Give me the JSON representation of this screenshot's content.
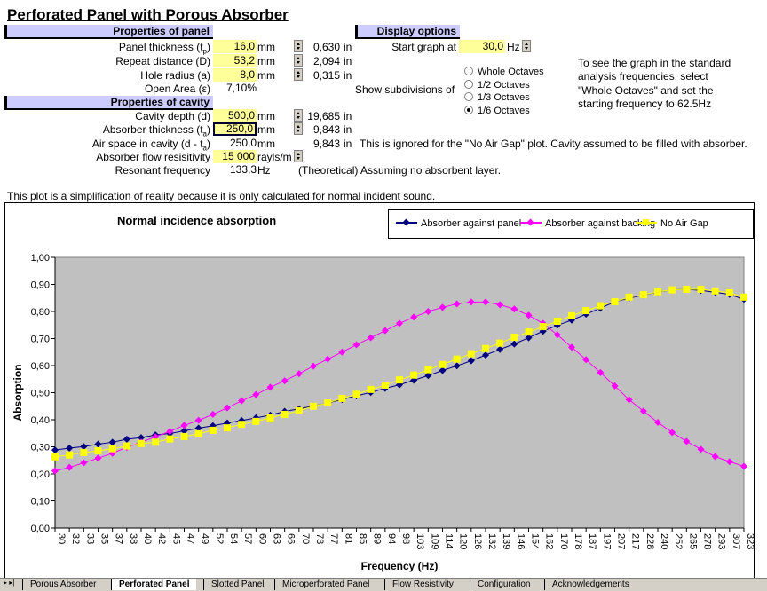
{
  "title": "Perforated Panel with Porous Absorber",
  "panel": {
    "header": "Properties of panel",
    "rows": [
      {
        "label": "Panel thickness (t",
        "sub": "p",
        "end": ")",
        "value": "16,0",
        "unit": "mm",
        "inch": "0,630",
        "inunit": "in"
      },
      {
        "label": "Repeat distance (D)",
        "value": "53,2",
        "unit": "mm",
        "inch": "2,094",
        "inunit": "in"
      },
      {
        "label": "Hole radius (a)",
        "value": "8,0",
        "unit": "mm",
        "inch": "0,315",
        "inunit": "in"
      },
      {
        "label": "Open Area (ε)",
        "value": "7,10%"
      }
    ]
  },
  "cavity": {
    "header": "Properties of cavity",
    "rows": [
      {
        "label": "Cavity depth (d)",
        "value": "500,0",
        "unit": "mm",
        "inch": "19,685",
        "inunit": "in"
      },
      {
        "label": "Absorber thickness (t",
        "sub": "a",
        "end": ")",
        "value": "250,0",
        "unit": "mm",
        "inch": "9,843",
        "inunit": "in"
      },
      {
        "label": "Air space in cavity (d - t",
        "sub": "a",
        "end": ")",
        "value": "250,0",
        "unit": "mm",
        "inch": "9,843",
        "inunit": "in",
        "note": "This is ignored for the \"No Air Gap\" plot.  Cavity assumed to be filled with absorber."
      },
      {
        "label": "Absorber flow resisitivity",
        "value": "15 000",
        "unit": "rayls/m"
      },
      {
        "label": "Resonant frequency",
        "value": "133,3",
        "unit": "Hz",
        "note": "(Theoretical) Assuming no absorbent layer."
      }
    ]
  },
  "display": {
    "header": "Display options",
    "start_label": "Start graph at",
    "start_value": "30,0",
    "start_unit": "Hz",
    "subdiv_label": "Show subdivisions of",
    "options": [
      {
        "label": "Whole Octaves",
        "checked": false
      },
      {
        "label": "1/2 Octaves",
        "checked": false
      },
      {
        "label": "1/3 Octaves",
        "checked": false
      },
      {
        "label": "1/6 Octaves",
        "checked": true
      }
    ],
    "help": [
      "To see the graph in the standard",
      "analysis frequencies, select",
      "\"Whole Octaves\" and set the",
      "starting frequency to 62.5Hz"
    ]
  },
  "plot_note": "This plot is a simplification of reality because it is only calculated for normal incident sound.",
  "chart_data": {
    "type": "line",
    "title": "Normal incidence absorption",
    "xlabel": "Frequency (Hz)",
    "ylabel": "Absorption",
    "ylim": [
      0,
      1
    ],
    "yticks": [
      "0,00",
      "0,10",
      "0,20",
      "0,30",
      "0,40",
      "0,50",
      "0,60",
      "0,70",
      "0,80",
      "0,90",
      "1,00"
    ],
    "categories": [
      "30",
      "32",
      "33",
      "35",
      "37",
      "38",
      "40",
      "42",
      "45",
      "47",
      "49",
      "52",
      "54",
      "57",
      "60",
      "63",
      "66",
      "70",
      "73",
      "77",
      "81",
      "85",
      "89",
      "94",
      "98",
      "103",
      "109",
      "114",
      "120",
      "126",
      "132",
      "139",
      "146",
      "154",
      "162",
      "170",
      "178",
      "187",
      "197",
      "207",
      "217",
      "228",
      "240",
      "252",
      "265",
      "278",
      "293",
      "307",
      "323"
    ],
    "legend_position": "top-right",
    "series": [
      {
        "name": "Absorber against panel",
        "color": "#000080",
        "marker": "diamond",
        "values": [
          0.288,
          0.295,
          0.301,
          0.31,
          0.317,
          0.328,
          0.334,
          0.344,
          0.349,
          0.359,
          0.369,
          0.378,
          0.388,
          0.397,
          0.407,
          0.417,
          0.431,
          0.44,
          0.451,
          0.462,
          0.475,
          0.488,
          0.501,
          0.516,
          0.529,
          0.546,
          0.563,
          0.582,
          0.599,
          0.618,
          0.639,
          0.66,
          0.68,
          0.703,
          0.727,
          0.749,
          0.768,
          0.79,
          0.812,
          0.836,
          0.849,
          0.861,
          0.872,
          0.88,
          0.882,
          0.878,
          0.871,
          0.863,
          0.845
        ]
      },
      {
        "name": "Absorber against backing",
        "color": "#ff00ff",
        "marker": "diamond",
        "values": [
          0.211,
          0.224,
          0.241,
          0.258,
          0.276,
          0.298,
          0.317,
          0.337,
          0.357,
          0.379,
          0.398,
          0.42,
          0.444,
          0.47,
          0.493,
          0.52,
          0.544,
          0.57,
          0.598,
          0.624,
          0.65,
          0.677,
          0.703,
          0.729,
          0.756,
          0.779,
          0.8,
          0.815,
          0.828,
          0.835,
          0.835,
          0.825,
          0.809,
          0.786,
          0.756,
          0.714,
          0.668,
          0.622,
          0.574,
          0.525,
          0.474,
          0.432,
          0.39,
          0.353,
          0.32,
          0.291,
          0.264,
          0.245,
          0.228
        ]
      },
      {
        "name": "No Air Gap",
        "color": "#ffff00",
        "marker": "square",
        "values": [
          0.263,
          0.27,
          0.279,
          0.285,
          0.293,
          0.303,
          0.312,
          0.317,
          0.329,
          0.338,
          0.348,
          0.361,
          0.37,
          0.383,
          0.394,
          0.407,
          0.42,
          0.433,
          0.45,
          0.462,
          0.479,
          0.494,
          0.512,
          0.528,
          0.547,
          0.565,
          0.585,
          0.604,
          0.624,
          0.644,
          0.663,
          0.683,
          0.705,
          0.724,
          0.744,
          0.764,
          0.784,
          0.803,
          0.821,
          0.836,
          0.853,
          0.862,
          0.873,
          0.88,
          0.882,
          0.882,
          0.876,
          0.869,
          0.853
        ]
      }
    ]
  },
  "tabs": [
    "Porous Absorber",
    "Perforated Panel",
    "Slotted Panel",
    "Microperforated Panel",
    "Flow Resistivity",
    "Configuration",
    "Acknowledgements"
  ],
  "active_tab": 1
}
